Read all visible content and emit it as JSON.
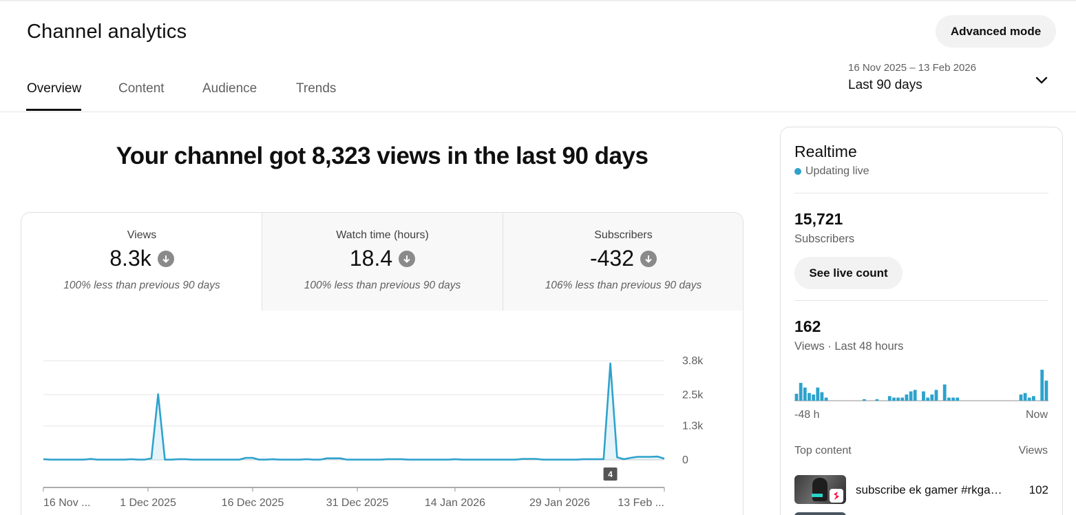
{
  "header": {
    "title": "Channel analytics",
    "advanced_mode_label": "Advanced mode",
    "tabs": [
      {
        "label": "Overview",
        "active": true
      },
      {
        "label": "Content",
        "active": false
      },
      {
        "label": "Audience",
        "active": false
      },
      {
        "label": "Trends",
        "active": false
      }
    ],
    "date_range": {
      "dates": "16 Nov 2025 – 13 Feb 2026",
      "period": "Last 90 days"
    }
  },
  "main": {
    "headline": "Your channel got 8,323 views in the last 90 days",
    "metrics": [
      {
        "label": "Views",
        "value": "8.3k",
        "note": "100% less than previous 90 days"
      },
      {
        "label": "Watch time (hours)",
        "value": "18.4",
        "note": "100% less than previous 90 days"
      },
      {
        "label": "Subscribers",
        "value": "-432",
        "note": "106% less than previous 90 days"
      }
    ]
  },
  "chart_data": {
    "type": "line",
    "series": [
      {
        "values": [
          30,
          10,
          10,
          10,
          10,
          10,
          10,
          40,
          10,
          10,
          10,
          10,
          10,
          30,
          10,
          10,
          60,
          2520,
          10,
          10,
          30,
          30,
          10,
          10,
          10,
          10,
          10,
          10,
          10,
          10,
          80,
          80,
          10,
          10,
          30,
          10,
          10,
          10,
          10,
          30,
          10,
          10,
          60,
          60,
          60,
          10,
          10,
          10,
          10,
          10,
          10,
          30,
          30,
          30,
          10,
          10,
          10,
          10,
          10,
          10,
          10,
          30,
          10,
          10,
          10,
          10,
          10,
          10,
          10,
          10,
          10,
          40,
          40,
          40,
          10,
          10,
          10,
          10,
          10,
          10,
          30,
          30,
          30,
          30,
          3700,
          100,
          30,
          80,
          120,
          120,
          120,
          130,
          50
        ]
      }
    ],
    "x_range": [
      "2025-11-16",
      "2026-02-13"
    ],
    "x_tick_labels": [
      "16 Nov ...",
      "1 Dec 2025",
      "16 Dec 2025",
      "31 Dec 2025",
      "14 Jan 2026",
      "29 Jan 2026",
      "13 Feb ..."
    ],
    "y_ticks": [
      0,
      1300,
      2500,
      3800
    ],
    "y_tick_labels": [
      "0",
      "1.3k",
      "2.5k",
      "3.8k"
    ],
    "ylim": [
      0,
      3800
    ],
    "grid": true,
    "y_axis_side": "right",
    "marker_badge": "4",
    "line_color": "#2ea2cc"
  },
  "realtime": {
    "title": "Realtime",
    "live_label": "Updating live",
    "subscribers_value": "15,721",
    "subscribers_label": "Subscribers",
    "live_count_button": "See live count",
    "views_value": "162",
    "views_label": "Views · Last 48 hours",
    "axis_start": "-48 h",
    "axis_end": "Now",
    "bars": [
      9,
      23,
      17,
      10,
      8,
      17,
      11,
      4,
      0,
      0,
      0,
      0,
      0,
      0,
      0,
      0,
      2,
      0,
      0,
      2,
      0,
      0,
      6,
      4,
      4,
      4,
      8,
      12,
      14,
      0,
      12,
      4,
      8,
      14,
      0,
      21,
      4,
      4,
      4,
      0,
      0,
      0,
      0,
      0,
      0,
      0,
      0,
      0,
      0,
      0,
      0,
      0,
      0,
      8,
      10,
      4,
      6,
      0,
      40,
      26
    ],
    "bar_color": "#2ea2cc",
    "top_content_label": "Top content",
    "top_content_views_label": "Views",
    "top_content": [
      {
        "title": "subscribe ek gamer #rkga…",
        "views": "102"
      }
    ]
  }
}
